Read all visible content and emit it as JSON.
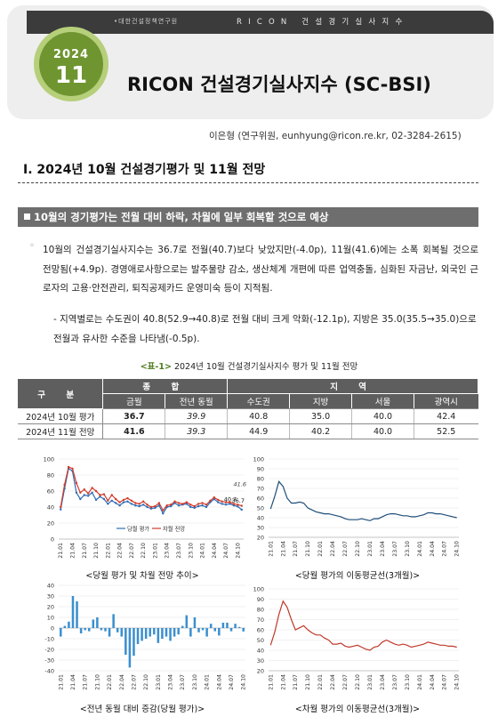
{
  "header": {
    "org": "•대한건설정책연구원",
    "brand": "RICON 건설경기실사지수",
    "year": "2024",
    "month": "11",
    "title": "RICON 건설경기실사지수 (SC-BSI)",
    "author": "이은형 (연구위원, eunhyung@ricon.re.kr, 02-3284-2615)"
  },
  "section": {
    "title": "Ⅰ. 2024년 10월 건설경기평가 및 11월 전망",
    "subheading": "10월의 경기평가는 전월 대비 하락, 차월에 일부 회복할 것으로 예상"
  },
  "body": {
    "bullet": "◦",
    "para1": "10월의 건설경기실사지수는 36.7로 전월(40.7)보다 낮았지만(-4.0p), 11월(41.6)에는 소폭 회복될 것으로 전망됨(+4.9p). 경영애로사항으로는 발주물량 감소, 생산체계 개편에 따른 업역충돌, 심화된 자금난, 외국인 근로자의 고용·안전관리, 퇴직공제카드 운영미숙 등이 지적됨.",
    "para2": "- 지역별로는 수도권이 40.8(52.9→40.8)로 전월 대비 크게 악화(-12.1p), 지방은 35.0(35.5→35.0)으로 전월과 유사한 수준을 나타냄(-0.5p)."
  },
  "table": {
    "caption_label": "<표-1>",
    "caption_text": " 2024년 10월 건설경기실사지수 평가 및 11월 전망",
    "group_header": "구 분",
    "group_total": "종 합",
    "group_region": "지 역",
    "columns": [
      "금월",
      "전년 동월",
      "수도권",
      "지방",
      "서울",
      "광역시"
    ],
    "rows": [
      {
        "label": "2024년 10월 평가",
        "cells": [
          "36.7",
          "39.9",
          "40.8",
          "35.0",
          "40.0",
          "42.4"
        ]
      },
      {
        "label": "2024년 11월 전망",
        "cells": [
          "41.6",
          "39.3",
          "44.9",
          "40.2",
          "40.0",
          "52.5"
        ]
      }
    ]
  },
  "charts": {
    "captions": [
      "<당월 평가 및 차월 전망 추이>",
      "<당월 평가의 이동평균선(3개월)>",
      "<전년 동월 대비 증감(당월 평가)>",
      "<차월 평가의 이동평균선(3개월)>"
    ]
  },
  "chart_data": [
    {
      "type": "line",
      "x": [
        "21.01",
        "21.02",
        "21.03",
        "21.04",
        "21.05",
        "21.06",
        "21.07",
        "21.08",
        "21.09",
        "21.10",
        "21.11",
        "21.12",
        "22.01",
        "22.02",
        "22.03",
        "22.04",
        "22.05",
        "22.06",
        "22.07",
        "22.08",
        "22.09",
        "22.10",
        "22.11",
        "22.12",
        "23.01",
        "23.02",
        "23.03",
        "23.04",
        "23.05",
        "23.06",
        "23.07",
        "23.08",
        "23.09",
        "23.10",
        "23.11",
        "23.12",
        "24.01",
        "24.02",
        "24.03",
        "24.04",
        "24.05",
        "24.06",
        "24.07",
        "24.08",
        "24.09",
        "24.10",
        "24.11"
      ],
      "x_tick_labels": [
        "21.01",
        "21.04",
        "21.07",
        "21.10",
        "22.01",
        "22.04",
        "22.07",
        "22.10",
        "23.01",
        "23.04",
        "23.07",
        "23.10",
        "24.01",
        "24.04",
        "24.07",
        "24.10"
      ],
      "series": [
        {
          "name": "당월 평가",
          "color": "#2e6db4",
          "values": [
            37,
            63,
            88,
            85,
            58,
            50,
            55,
            54,
            58,
            49,
            53,
            50,
            44,
            48,
            45,
            42,
            46,
            47,
            44,
            42,
            41,
            43,
            40,
            38,
            39,
            42,
            32,
            40,
            41,
            45,
            42,
            43,
            44,
            40,
            39,
            41,
            42,
            40,
            46,
            50,
            46,
            44,
            43,
            44,
            42,
            40.7,
            36.7
          ]
        },
        {
          "name": "차월 전망",
          "color": "#d23a2a",
          "values": [
            40,
            68,
            90,
            88,
            70,
            58,
            62,
            57,
            64,
            60,
            55,
            56,
            48,
            55,
            50,
            46,
            49,
            51,
            48,
            45,
            44,
            47,
            43,
            40,
            41,
            45,
            36,
            42,
            43,
            47,
            45,
            44,
            46,
            43,
            41,
            44,
            45,
            43,
            48,
            52,
            49,
            47,
            46,
            46,
            44,
            43,
            41.6
          ]
        }
      ],
      "annotations": [
        "40.7",
        "36.7",
        "41.6"
      ],
      "ylim": [
        0,
        100
      ],
      "y_ticks": [
        0,
        20,
        40,
        60,
        80,
        100
      ],
      "legend": "bottom"
    },
    {
      "type": "line",
      "x_tick_labels": [
        "21.01",
        "21.04",
        "21.07",
        "21.10",
        "22.01",
        "22.04",
        "22.07",
        "22.10",
        "23.01",
        "23.04",
        "23.07",
        "23.10",
        "24.01",
        "24.04",
        "24.07",
        "24.10"
      ],
      "series": [
        {
          "color": "#1f4e79",
          "values": [
            49,
            62,
            77,
            72,
            60,
            55,
            55,
            56,
            55,
            50,
            48,
            46,
            45,
            44,
            44,
            43,
            42,
            41,
            39,
            38,
            38,
            38,
            39,
            38,
            37,
            39,
            39,
            41,
            43,
            44,
            44,
            43,
            42,
            42,
            41,
            41,
            42,
            43,
            45,
            45,
            44,
            44,
            43,
            42,
            41,
            40
          ]
        }
      ],
      "ylim": [
        20,
        100
      ],
      "y_ticks": [
        20,
        30,
        40,
        50,
        60,
        70,
        80,
        90,
        100
      ]
    },
    {
      "type": "bar",
      "x_tick_labels": [
        "21.01",
        "21.04",
        "21.07",
        "21.10",
        "22.01",
        "22.04",
        "22.07",
        "22.10",
        "23.01",
        "23.04",
        "23.07",
        "23.10",
        "24.01",
        "24.04",
        "24.07",
        "24.10"
      ],
      "series": [
        {
          "color": "#3a8fcf",
          "values": [
            -8,
            2,
            6,
            30,
            25,
            -5,
            -2,
            -3,
            8,
            10,
            -2,
            -3,
            -8,
            13,
            -4,
            -8,
            -25,
            -37,
            -26,
            -15,
            -12,
            -10,
            -8,
            -6,
            -14,
            -10,
            -8,
            -12,
            -8,
            -6,
            2,
            12,
            -8,
            10,
            -4,
            -2,
            -8,
            4,
            -3,
            -7,
            5,
            5,
            -3,
            4,
            1,
            -3.2
          ]
        }
      ],
      "ylim": [
        -40,
        40
      ],
      "y_ticks": [
        -40,
        -30,
        -20,
        -10,
        0,
        10,
        20,
        30,
        40
      ]
    },
    {
      "type": "line",
      "x_tick_labels": [
        "21.01",
        "21.04",
        "21.07",
        "21.10",
        "22.01",
        "22.04",
        "22.07",
        "22.10",
        "23.01",
        "23.04",
        "23.07",
        "23.10",
        "24.01",
        "24.04",
        "24.07",
        "24.10"
      ],
      "series": [
        {
          "color": "#c0392b",
          "values": [
            45,
            58,
            75,
            88,
            82,
            70,
            60,
            62,
            64,
            60,
            57,
            55,
            55,
            52,
            50,
            46,
            46,
            47,
            44,
            43,
            44,
            45,
            43,
            41,
            40,
            43,
            44,
            48,
            50,
            48,
            46,
            45,
            46,
            45,
            43,
            44,
            45,
            46,
            48,
            47,
            46,
            45,
            45,
            44,
            44,
            43
          ]
        }
      ],
      "ylim": [
        20,
        100
      ],
      "y_ticks": [
        20,
        30,
        40,
        50,
        60,
        70,
        80,
        90,
        100
      ]
    }
  ]
}
